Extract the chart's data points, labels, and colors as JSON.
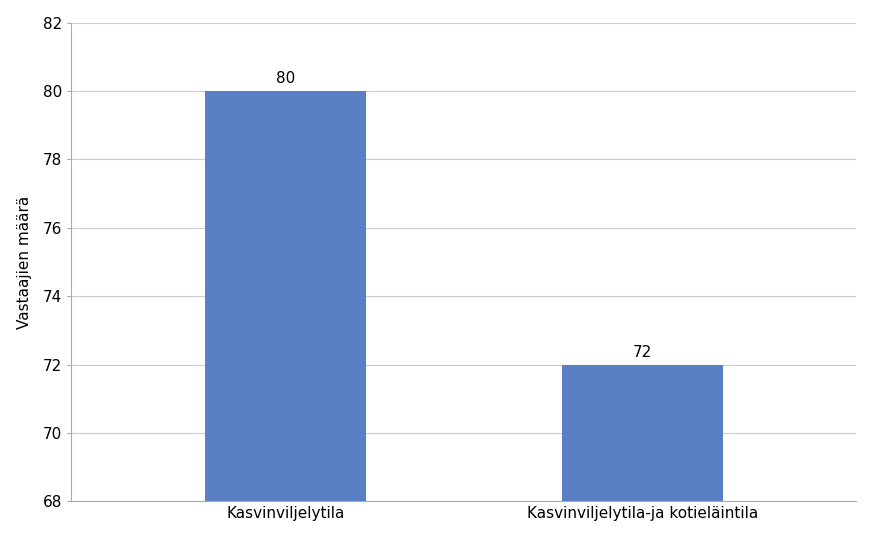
{
  "categories": [
    "Kasvinviljelytila",
    "Kasvinviljelytila-ja kotieläintila"
  ],
  "values": [
    80,
    72
  ],
  "bar_color": "#5b7fc4",
  "ylabel": "Vastaajien määrä",
  "ylim": [
    68,
    82
  ],
  "ymin": 68,
  "yticks": [
    68,
    70,
    72,
    74,
    76,
    78,
    80,
    82
  ],
  "bar_width": 0.45,
  "value_labels": [
    80,
    72
  ],
  "label_fontsize": 11,
  "tick_fontsize": 11,
  "ylabel_fontsize": 11,
  "background_color": "#ffffff",
  "grid_color": "#cccccc",
  "border_color": "#aaaaaa"
}
